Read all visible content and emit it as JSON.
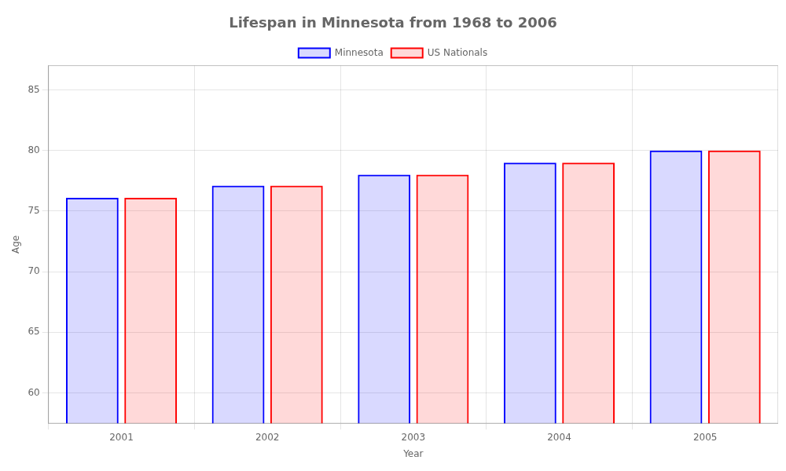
{
  "chart_data": {
    "type": "bar",
    "title": "Lifespan in Minnesota from 1968 to 2006",
    "x_label": "Year",
    "y_label": "Age",
    "categories": [
      "2001",
      "2002",
      "2003",
      "2004",
      "2005"
    ],
    "series": [
      {
        "name": "Minnesota",
        "color": "#0000ff",
        "values": [
          76.1,
          77.1,
          78.0,
          79.0,
          80.0
        ]
      },
      {
        "name": "US Nationals",
        "color": "#ff0000",
        "values": [
          76.1,
          77.1,
          78.0,
          79.0,
          80.0
        ]
      }
    ],
    "ylim": [
      57.5,
      87
    ],
    "yticks": [
      60,
      65,
      70,
      75,
      80,
      85
    ],
    "grid": true,
    "legend": "top"
  }
}
